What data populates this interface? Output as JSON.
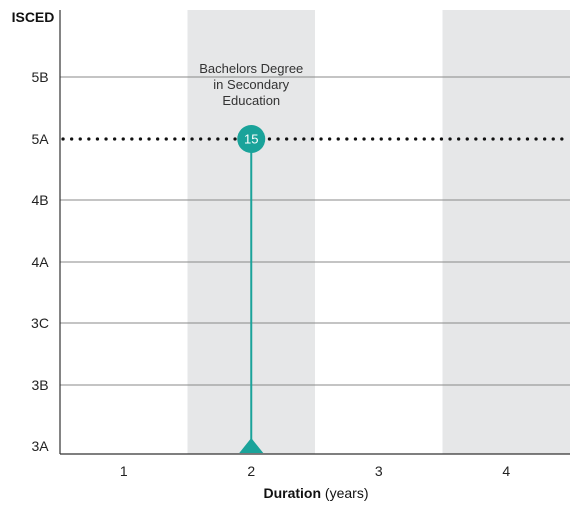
{
  "chart_data": {
    "type": "scatter",
    "ylabel": "ISCED",
    "xlabel_bold": "Duration",
    "xlabel_rest": " (years)",
    "x_categories": [
      "1",
      "2",
      "3",
      "4"
    ],
    "y_levels": [
      "3A",
      "3B",
      "3C",
      "4A",
      "4B",
      "5A",
      "5B"
    ],
    "shaded_columns": [
      "2",
      "4"
    ],
    "reference_line": {
      "level": "5A",
      "style": "dotted"
    },
    "points": [
      {
        "label": "15",
        "x": "2",
        "y": "5A",
        "stem_from": "3A",
        "annotation": [
          "Bachelors Degree",
          "in Secondary",
          "Education"
        ]
      }
    ],
    "colors": {
      "accent": "#1aa39a",
      "shade": "#e6e7e8",
      "grid": "#888888",
      "axis": "#333333",
      "reference": "#111111"
    }
  }
}
